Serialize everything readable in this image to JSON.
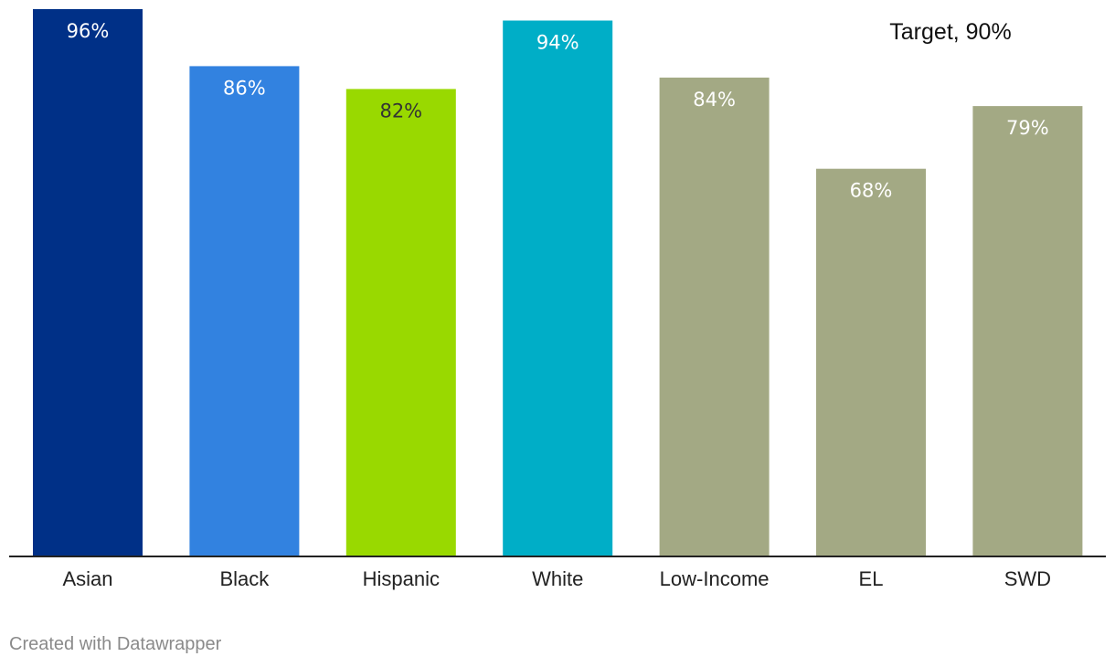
{
  "chart_data": {
    "type": "bar",
    "categories": [
      "Asian",
      "Black",
      "Hispanic",
      "White",
      "Low-Income",
      "EL",
      "SWD"
    ],
    "values": [
      96,
      86,
      82,
      94,
      84,
      68,
      79
    ],
    "value_labels": [
      "96%",
      "86%",
      "82%",
      "94%",
      "84%",
      "68%",
      "79%"
    ],
    "colors": [
      "#003087",
      "#3282e0",
      "#99d900",
      "#00aec7",
      "#a3a984",
      "#a3a984",
      "#a3a984"
    ],
    "label_colors": [
      "#ffffff",
      "#ffffff",
      "#333333",
      "#ffffff",
      "#ffffff",
      "#ffffff",
      "#ffffff"
    ],
    "unit": "%",
    "ylim": [
      0,
      96
    ],
    "grid": false,
    "target": {
      "value": 90,
      "label": "Target, 90%"
    }
  },
  "footer": {
    "credit": "Created with Datawrapper"
  }
}
